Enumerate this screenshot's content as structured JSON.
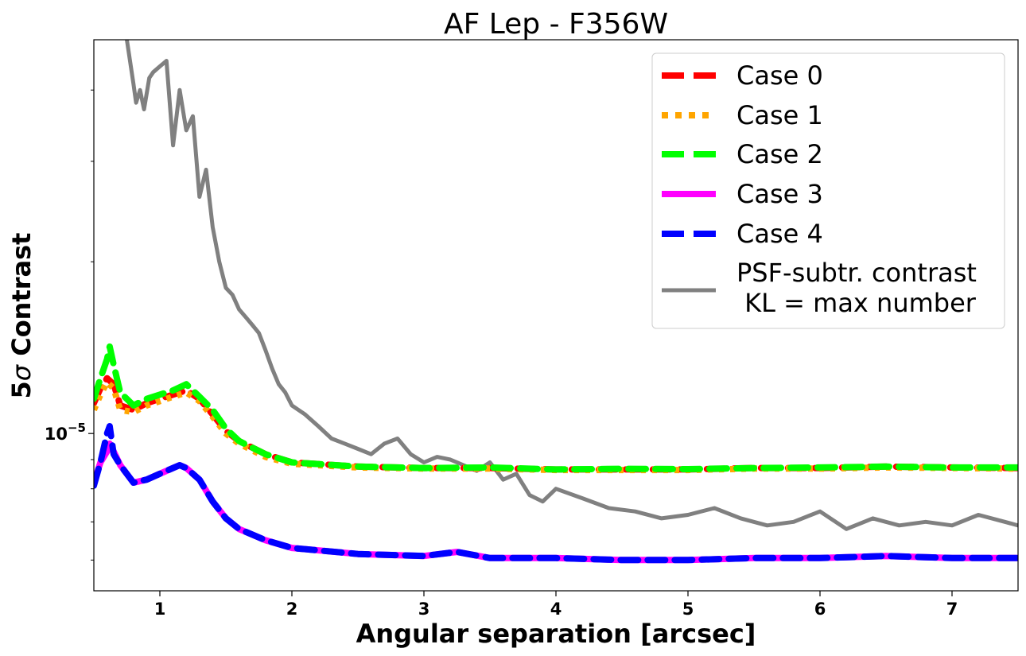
{
  "chart_data": {
    "type": "line",
    "title": "AF Lep - F356W",
    "xlabel": "Angular separation [arcsec]",
    "ylabel_prefix": "5",
    "ylabel_sigma": "σ",
    "ylabel_suffix": " Contrast",
    "xlim": [
      0.5,
      7.5
    ],
    "ylim": [
      5.3e-06,
      4.9e-05
    ],
    "yscale": "log",
    "x_ticks": [
      1,
      2,
      3,
      4,
      5,
      6,
      7
    ],
    "x_tick_labels": [
      "1",
      "2",
      "3",
      "4",
      "5",
      "6",
      "7"
    ],
    "y_tick_label_base": "10",
    "y_tick_label_exp": "−5",
    "legend_position": "upper right",
    "series": [
      {
        "name": "Case 0",
        "color": "#ff0000",
        "style": "dashed",
        "x": [
          0.5,
          0.55,
          0.6,
          0.65,
          0.7,
          0.8,
          0.9,
          1.0,
          1.1,
          1.2,
          1.3,
          1.4,
          1.5,
          1.6,
          1.8,
          2.0,
          2.5,
          3.0,
          3.5,
          4.0,
          4.5,
          5.0,
          5.5,
          6.0,
          6.5,
          7.0,
          7.5
        ],
        "y": [
          1.13e-05,
          1.2e-05,
          1.25e-05,
          1.22e-05,
          1.12e-05,
          1.1e-05,
          1.13e-05,
          1.15e-05,
          1.17e-05,
          1.19e-05,
          1.15e-05,
          1.08e-05,
          1.01e-05,
          9.7e-06,
          9.2e-06,
          8.9e-06,
          8.75e-06,
          8.7e-06,
          8.7e-06,
          8.65e-06,
          8.65e-06,
          8.65e-06,
          8.7e-06,
          8.7e-06,
          8.75e-06,
          8.72e-06,
          8.7e-06
        ]
      },
      {
        "name": "Case 1",
        "color": "#ffa500",
        "style": "dotted",
        "x": [
          0.5,
          0.55,
          0.6,
          0.65,
          0.7,
          0.8,
          0.9,
          1.0,
          1.1,
          1.2,
          1.3,
          1.4,
          1.5,
          1.6,
          1.8,
          2.0,
          2.5,
          3.0,
          3.5,
          4.0,
          4.5,
          5.0,
          5.5,
          6.0,
          6.5,
          7.0,
          7.5
        ],
        "y": [
          1.1e-05,
          1.17e-05,
          1.23e-05,
          1.2e-05,
          1.1e-05,
          1.09e-05,
          1.12e-05,
          1.14e-05,
          1.16e-05,
          1.18e-05,
          1.14e-05,
          1.07e-05,
          1e-05,
          9.6e-06,
          9.1e-06,
          8.85e-06,
          8.72e-06,
          8.68e-06,
          8.68e-06,
          8.63e-06,
          8.63e-06,
          8.63e-06,
          8.68e-06,
          8.68e-06,
          8.72e-06,
          8.7e-06,
          8.68e-06
        ]
      },
      {
        "name": "Case 2",
        "color": "#00ff00",
        "style": "dashed",
        "x": [
          0.5,
          0.55,
          0.6,
          0.62,
          0.65,
          0.7,
          0.8,
          0.9,
          1.0,
          1.1,
          1.2,
          1.3,
          1.4,
          1.5,
          1.6,
          1.8,
          2.0,
          2.5,
          3.0,
          3.5,
          4.0,
          4.5,
          5.0,
          5.5,
          6.0,
          6.5,
          7.0,
          7.5
        ],
        "y": [
          1.15e-05,
          1.25e-05,
          1.35e-05,
          1.42e-05,
          1.32e-05,
          1.18e-05,
          1.12e-05,
          1.15e-05,
          1.17e-05,
          1.19e-05,
          1.22e-05,
          1.16e-05,
          1.1e-05,
          1.02e-05,
          9.7e-06,
          9.2e-06,
          8.9e-06,
          8.75e-06,
          8.7e-06,
          8.72e-06,
          8.65e-06,
          8.67e-06,
          8.66e-06,
          8.7e-06,
          8.72e-06,
          8.75e-06,
          8.72e-06,
          8.72e-06
        ]
      },
      {
        "name": "Case 3",
        "color": "#ff00ff",
        "style": "solid",
        "x": [
          0.5,
          0.55,
          0.6,
          0.62,
          0.65,
          0.7,
          0.8,
          0.9,
          1.0,
          1.1,
          1.15,
          1.2,
          1.3,
          1.4,
          1.5,
          1.6,
          1.8,
          2.0,
          2.5,
          3.0,
          3.25,
          3.5,
          4.0,
          4.5,
          5.0,
          5.5,
          6.0,
          6.5,
          7.0,
          7.5
        ],
        "y": [
          8.2e-06,
          8.9e-06,
          9.3e-06,
          9.6e-06,
          9.3e-06,
          8.8e-06,
          8.2e-06,
          8.3e-06,
          8.5e-06,
          8.7e-06,
          8.8e-06,
          8.7e-06,
          8.3e-06,
          7.6e-06,
          7.1e-06,
          6.8e-06,
          6.5e-06,
          6.3e-06,
          6.15e-06,
          6.1e-06,
          6.2e-06,
          6.05e-06,
          6.05e-06,
          6e-06,
          6e-06,
          6.05e-06,
          6.05e-06,
          6.1e-06,
          6.05e-06,
          6.05e-06
        ]
      },
      {
        "name": "Case 4",
        "color": "#0000ff",
        "style": "dashed",
        "x": [
          0.5,
          0.55,
          0.6,
          0.62,
          0.65,
          0.7,
          0.8,
          0.9,
          1.0,
          1.1,
          1.15,
          1.2,
          1.3,
          1.4,
          1.5,
          1.6,
          1.8,
          2.0,
          2.5,
          3.0,
          3.25,
          3.5,
          4.0,
          4.5,
          5.0,
          5.5,
          6.0,
          6.5,
          7.0,
          7.5
        ],
        "y": [
          8.1e-06,
          8.9e-06,
          1e-05,
          1.03e-05,
          9.2e-06,
          8.8e-06,
          8.2e-06,
          8.3e-06,
          8.5e-06,
          8.7e-06,
          8.8e-06,
          8.7e-06,
          8.3e-06,
          7.6e-06,
          7.1e-06,
          6.8e-06,
          6.5e-06,
          6.3e-06,
          6.15e-06,
          6.1e-06,
          6.2e-06,
          6.05e-06,
          6.05e-06,
          6e-06,
          6e-06,
          6.05e-06,
          6.05e-06,
          6.1e-06,
          6.05e-06,
          6.05e-06
        ]
      },
      {
        "name": "PSF-subtr. contrast\n KL = max number",
        "color": "#808080",
        "style": "solid",
        "x": [
          0.75,
          0.8,
          0.82,
          0.85,
          0.88,
          0.92,
          0.95,
          1.0,
          1.05,
          1.1,
          1.15,
          1.2,
          1.25,
          1.3,
          1.35,
          1.4,
          1.45,
          1.5,
          1.55,
          1.6,
          1.65,
          1.7,
          1.75,
          1.8,
          1.85,
          1.9,
          1.95,
          2.0,
          2.1,
          2.2,
          2.3,
          2.4,
          2.5,
          2.6,
          2.7,
          2.8,
          2.9,
          3.0,
          3.1,
          3.2,
          3.3,
          3.4,
          3.5,
          3.6,
          3.7,
          3.8,
          3.9,
          4.0,
          4.2,
          4.4,
          4.6,
          4.8,
          5.0,
          5.2,
          5.4,
          5.6,
          5.8,
          6.0,
          6.2,
          6.4,
          6.6,
          6.8,
          7.0,
          7.2,
          7.4,
          7.5
        ],
        "y": [
          4.9e-05,
          4.1e-05,
          3.8e-05,
          4e-05,
          3.7e-05,
          4.2e-05,
          4.3e-05,
          4.4e-05,
          4.5e-05,
          3.2e-05,
          4e-05,
          3.4e-05,
          3.6e-05,
          2.6e-05,
          2.9e-05,
          2.3e-05,
          2e-05,
          1.8e-05,
          1.75e-05,
          1.65e-05,
          1.6e-05,
          1.55e-05,
          1.5e-05,
          1.4e-05,
          1.3e-05,
          1.22e-05,
          1.18e-05,
          1.12e-05,
          1.08e-05,
          1.03e-05,
          9.8e-06,
          9.6e-06,
          9.4e-06,
          9.2e-06,
          9.6e-06,
          9.8e-06,
          9.2e-06,
          8.9e-06,
          9.1e-06,
          9e-06,
          8.8e-06,
          8.6e-06,
          8.9e-06,
          8.3e-06,
          8.5e-06,
          7.8e-06,
          7.6e-06,
          8e-06,
          7.7e-06,
          7.4e-06,
          7.3e-06,
          7.1e-06,
          7.2e-06,
          7.4e-06,
          7.1e-06,
          6.9e-06,
          7e-06,
          7.3e-06,
          6.8e-06,
          7.1e-06,
          6.9e-06,
          7e-06,
          6.9e-06,
          7.2e-06,
          7e-06,
          6.9e-06
        ]
      }
    ]
  }
}
